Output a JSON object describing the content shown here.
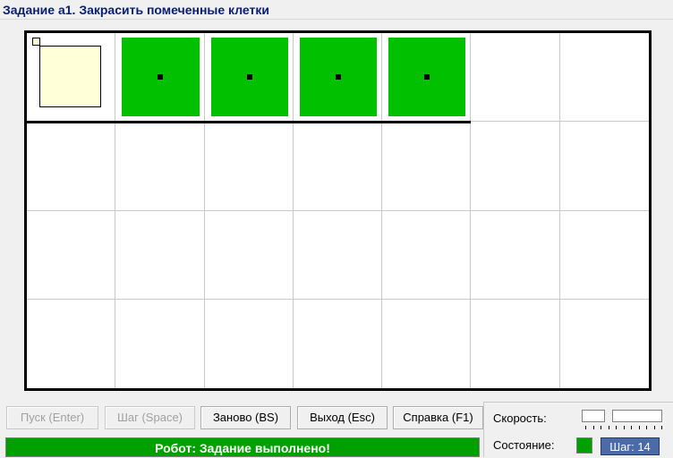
{
  "window": {
    "title": "Задание a1. Закрасить помеченные клетки"
  },
  "field": {
    "cols": 7,
    "rows": 4,
    "robot": {
      "row": 0,
      "col": 0
    },
    "painted_marked_cells": [
      {
        "row": 0,
        "col": 1
      },
      {
        "row": 0,
        "col": 2
      },
      {
        "row": 0,
        "col": 3
      },
      {
        "row": 0,
        "col": 4
      }
    ],
    "colors": {
      "painted": "#00c000",
      "robot": "#ffffd8",
      "grid": "#c8c8c8"
    }
  },
  "toolbar": {
    "run_label": "Пуск (Enter)",
    "step_label": "Шаг (Space)",
    "reset_label": "Заново (BS)",
    "exit_label": "Выход (Esc)",
    "help_label": "Справка (F1)"
  },
  "status": {
    "message": "Робот: Задание выполнено!",
    "color": "#00a000"
  },
  "panel": {
    "speed_label": "Скорость:",
    "state_label": "Состояние:",
    "state_color": "#00a000",
    "step_counter": "Шаг: 14"
  }
}
